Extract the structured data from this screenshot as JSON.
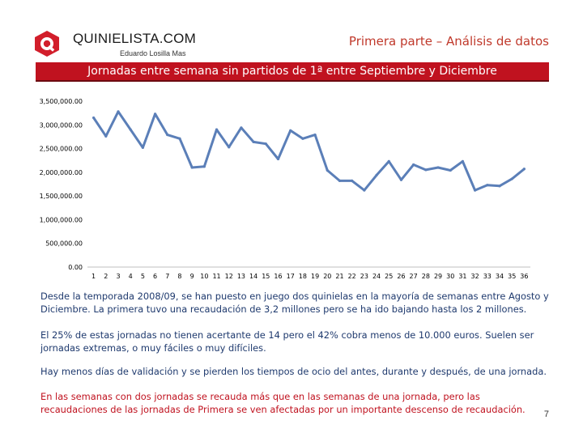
{
  "header": {
    "brand": "QUINIELISTA.COM",
    "author": "Eduardo Losilla Mas",
    "section": "Primera parte – Análisis de datos",
    "logo_letter": "Q"
  },
  "slide_title": "Jornadas entre semana sin partidos de 1ª entre Septiembre y Diciembre",
  "chart_data": {
    "type": "line",
    "title": "",
    "xlabel": "",
    "ylabel": "",
    "ylim": [
      0,
      3500000
    ],
    "yticks": [
      "3,500,000.00",
      "3,000,000.00",
      "2,500,000.00",
      "2,000,000.00",
      "1,500,000.00",
      "1,000,000.00",
      "500,000.00",
      "0.00"
    ],
    "ytick_values": [
      3500000,
      3000000,
      2500000,
      2000000,
      1500000,
      1000000,
      500000,
      0
    ],
    "categories": [
      "1",
      "2",
      "3",
      "4",
      "5",
      "6",
      "7",
      "8",
      "9",
      "10",
      "11",
      "12",
      "13",
      "14",
      "15",
      "16",
      "17",
      "18",
      "19",
      "20",
      "21",
      "22",
      "23",
      "24",
      "25",
      "26",
      "27",
      "28",
      "29",
      "30",
      "31",
      "32",
      "33",
      "34",
      "35",
      "36"
    ],
    "series": [
      {
        "values": [
          3150000,
          2760000,
          3280000,
          2900000,
          2520000,
          3230000,
          2790000,
          2710000,
          2100000,
          2120000,
          2900000,
          2530000,
          2940000,
          2640000,
          2600000,
          2280000,
          2880000,
          2710000,
          2790000,
          2040000,
          1820000,
          1820000,
          1620000,
          1940000,
          2230000,
          1840000,
          2160000,
          2050000,
          2100000,
          2040000,
          2230000,
          1620000,
          1730000,
          1710000,
          1860000,
          2070000
        ],
        "color": "#5b7fb8"
      }
    ],
    "grid": false,
    "legend": "none"
  },
  "paragraphs": [
    "Desde la temporada 2008/09, se han puesto en juego dos quinielas en la mayoría de semanas entre Agosto y Diciembre. La primera tuvo una recaudación de 3,2 millones pero se ha ido bajando hasta los 2 millones.",
    "El 25% de estas jornadas no tienen acertante de 14 pero el 42% cobra menos de 10.000 euros. Suelen ser jornadas extremas, o muy fáciles o muy difíciles.",
    "Hay  menos días de validación y se pierden los tiempos de ocio del antes, durante y después, de una jornada.",
    "En las semanas con dos jornadas se recauda más que en las semanas de una jornada, pero las recaudaciones de las jornadas de Primera se ven afectadas por un importante descenso de recaudación."
  ],
  "page_number": "7",
  "colors": {
    "accent_red": "#c0121f",
    "text_blue": "#1f3a6e",
    "line_blue": "#5b7fb8"
  }
}
